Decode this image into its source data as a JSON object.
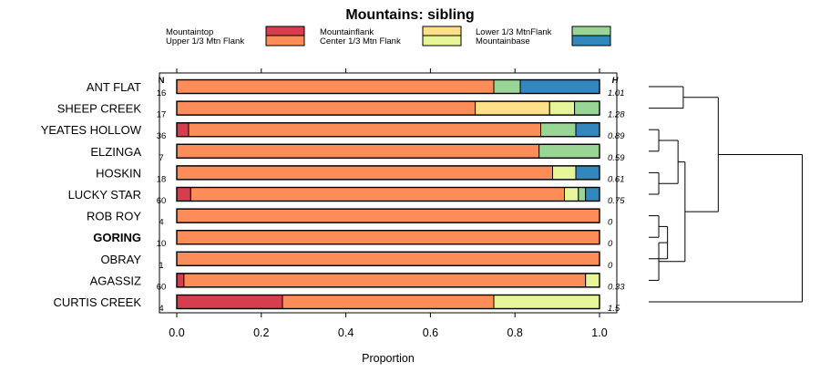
{
  "chart_data": {
    "type": "bar",
    "orientation": "horizontal",
    "stacked": true,
    "title": "Mountains: sibling",
    "xlabel": "Proportion",
    "xlim": [
      0,
      1
    ],
    "xticks": [
      "0.0",
      "0.2",
      "0.4",
      "0.6",
      "0.8",
      "1.0"
    ],
    "n_header": "N",
    "h_header": "H",
    "highlighted_category": "GORING",
    "categories": [
      "ANT FLAT",
      "SHEEP CREEK",
      "YEATES HOLLOW",
      "ELZINGA",
      "HOSKIN",
      "LUCKY STAR",
      "ROB ROY",
      "GORING",
      "OBRAY",
      "AGASSIZ",
      "CURTIS CREEK"
    ],
    "n": [
      "16",
      "17",
      "36",
      "7",
      "18",
      "60",
      "4",
      "10",
      "1",
      "60",
      "4"
    ],
    "h": [
      "1.01",
      "1.28",
      "0.89",
      "0.59",
      "0.61",
      "0.75",
      "0",
      "0",
      "0",
      "0.33",
      "1.5"
    ],
    "series": [
      {
        "name": "Mountaintop",
        "color": "#d53e4f",
        "values": [
          0,
          0,
          0.028,
          0,
          0,
          0.033,
          0,
          0,
          0,
          0.017,
          0.25
        ]
      },
      {
        "name": "Upper 1/3 Mtn Flank",
        "color": "#fc8d59",
        "values": [
          0.75,
          0.706,
          0.833,
          0.857,
          0.889,
          0.884,
          1,
          1,
          1,
          0.95,
          0.5
        ]
      },
      {
        "name": "Mountainflank",
        "color": "#fee08b",
        "values": [
          0,
          0.176,
          0,
          0,
          0,
          0,
          0,
          0,
          0,
          0,
          0
        ]
      },
      {
        "name": "Center 1/3 Mtn Flank",
        "color": "#e6f598",
        "values": [
          0,
          0.059,
          0,
          0,
          0.055,
          0.033,
          0,
          0,
          0,
          0.033,
          0.25
        ]
      },
      {
        "name": "Lower 1/3 MtnFlank",
        "color": "#99d594",
        "values": [
          0.0625,
          0.059,
          0.083,
          0.143,
          0,
          0.017,
          0,
          0,
          0,
          0,
          0
        ]
      },
      {
        "name": "Mountainbase",
        "color": "#3288bd",
        "values": [
          0.1875,
          0,
          0.056,
          0,
          0.056,
          0.033,
          0,
          0,
          0,
          0,
          0
        ]
      }
    ],
    "dendrogram": {
      "clusters": [
        {
          "a": "ANT FLAT",
          "b": "SHEEP CREEK",
          "height": 0.26
        },
        {
          "a": "YEATES HOLLOW",
          "b": "ELZINGA",
          "height": 0.12
        },
        {
          "a": "HOSKIN",
          "b": "LUCKY STAR",
          "height": 0.12
        },
        {
          "a": "c1",
          "b": "c2",
          "height": 0.23
        },
        {
          "a": "ROB ROY",
          "b": "GORING",
          "height": 0.12
        },
        {
          "a": "c4",
          "b": "OBRAY",
          "height": 0.17
        },
        {
          "a": "c5",
          "b": "AGASSIZ",
          "height": 0.12
        },
        {
          "a": "c3",
          "b": "c6",
          "height": 0.27
        },
        {
          "a": "c0",
          "b": "c7",
          "height": 0.46
        },
        {
          "a": "c8",
          "b": "CURTIS CREEK",
          "height": 0.94
        }
      ]
    }
  }
}
